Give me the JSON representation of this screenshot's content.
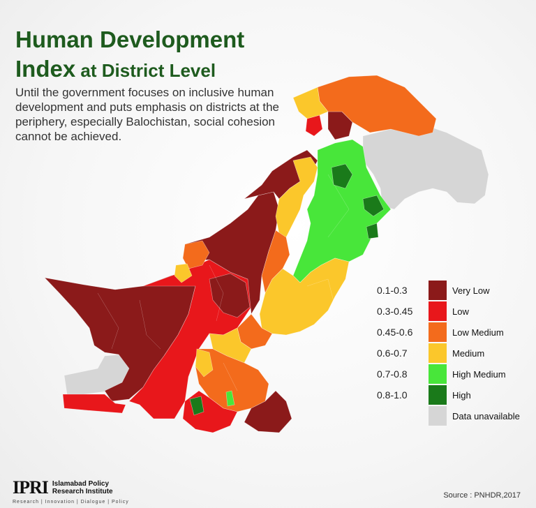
{
  "title": {
    "line1": "Human Development",
    "line2_bold": "Index",
    "line2_rest": " at District Level"
  },
  "subtitle": "Until the government focuses on inclusive human development and puts emphasis on districts at the periphery, especially Balochistan, social cohesion cannot be achieved.",
  "legend": [
    {
      "range": "0.1-0.3",
      "label": "Very Low",
      "color": "#8b1a1a"
    },
    {
      "range": "0.3-0.45",
      "label": "Low",
      "color": "#e8171b"
    },
    {
      "range": "0.45-0.6",
      "label": "Low Medium",
      "color": "#f36b1c"
    },
    {
      "range": "0.6-0.7",
      "label": "Medium",
      "color": "#fbc72b"
    },
    {
      "range": "0.7-0.8",
      "label": "High Medium",
      "color": "#48e63a"
    },
    {
      "range": "0.8-1.0",
      "label": "High",
      "color": "#1a7a1a"
    },
    {
      "range": "",
      "label": "Data unavailable",
      "color": "#d6d6d6"
    }
  ],
  "logo": {
    "mark": "IPRI",
    "name_line1": "Islamabad Policy",
    "name_line2": "Research Institute",
    "tagline": "Research | Innovation | Dialogue | Policy"
  },
  "source": "Source : PNHDR,2017",
  "colors": {
    "title": "#1e5b1e",
    "very_low": "#8b1a1a",
    "low": "#e8171b",
    "low_medium": "#f36b1c",
    "medium": "#fbc72b",
    "high_medium": "#48e63a",
    "high": "#1a7a1a",
    "unavailable": "#d6d6d6"
  }
}
